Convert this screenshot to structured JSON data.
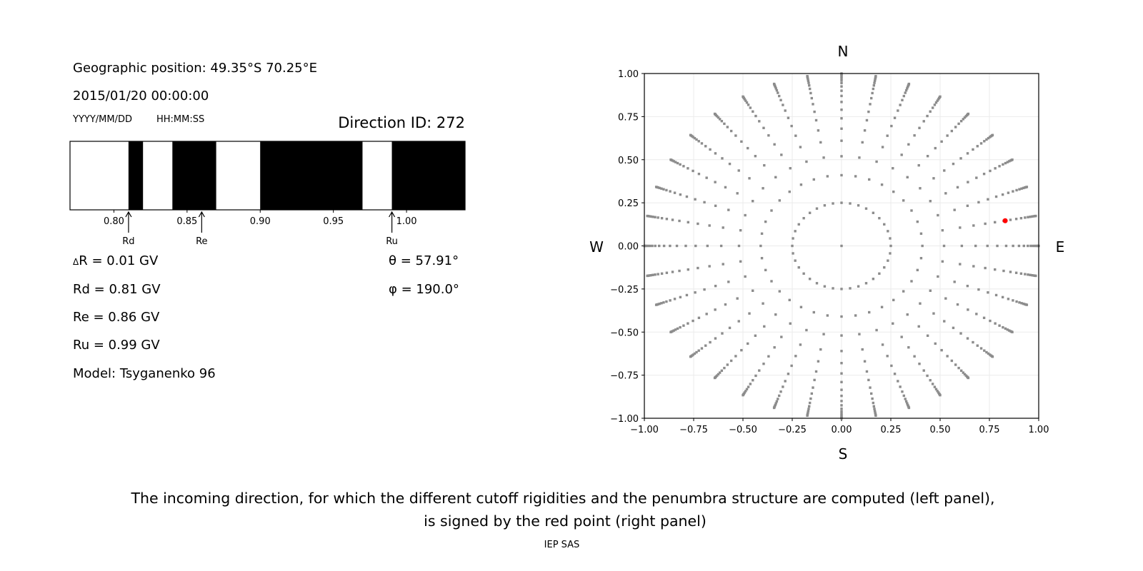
{
  "left_panel": {
    "geo_position": "Geographic position: 49.35°S 70.25°E",
    "datetime": "2015/01/20 00:00:00",
    "date_format": "YYYY/MM/DD",
    "time_format": "HH:MM:SS",
    "direction_id": "Direction ID: 272",
    "delta_r": "R = 0.01 GV",
    "delta_symbol": "Δ",
    "rd": "Rd = 0.81 GV",
    "re": "Re = 0.86 GV",
    "ru": "Ru = 0.99 GV",
    "model": "Model: Tsyganenko 96",
    "theta": "θ = 57.91°",
    "phi": "φ = 190.0°"
  },
  "chart_data": [
    {
      "type": "bar",
      "description_role": "penumbra",
      "xlim": [
        0.77,
        1.04
      ],
      "xticks": [
        "0.80",
        "0.85",
        "0.90",
        "0.95",
        "1.00"
      ],
      "segments": [
        {
          "from": 0.77,
          "to": 0.81,
          "allowed": true
        },
        {
          "from": 0.81,
          "to": 0.82,
          "allowed": false
        },
        {
          "from": 0.82,
          "to": 0.84,
          "allowed": true
        },
        {
          "from": 0.84,
          "to": 0.87,
          "allowed": false
        },
        {
          "from": 0.87,
          "to": 0.9,
          "allowed": true
        },
        {
          "from": 0.9,
          "to": 0.97,
          "allowed": false
        },
        {
          "from": 0.97,
          "to": 0.99,
          "allowed": true
        },
        {
          "from": 0.99,
          "to": 1.04,
          "allowed": false
        }
      ],
      "markers": [
        {
          "label": "Rd",
          "value": 0.81
        },
        {
          "label": "Re",
          "value": 0.86
        },
        {
          "label": "Ru",
          "value": 0.99
        }
      ]
    },
    {
      "type": "scatter",
      "xlim": [
        -1,
        1
      ],
      "ylim": [
        -1,
        1
      ],
      "grid": true,
      "ticks": [
        "−1.00",
        "−0.75",
        "−0.50",
        "−0.25",
        "0.00",
        "0.25",
        "0.50",
        "0.75",
        "1.00"
      ],
      "tick_values": [
        -1,
        -0.75,
        -0.5,
        -0.25,
        0,
        0.25,
        0.5,
        0.75,
        1
      ],
      "compass": {
        "north": "N",
        "south": "S",
        "west": "W",
        "east": "E"
      },
      "inner_ring_radius": 0.25,
      "spoke_azimuth_step_deg": 10,
      "spoke_radii": [
        0.41,
        0.52,
        0.61,
        0.68,
        0.74,
        0.79,
        0.835,
        0.87,
        0.9,
        0.925,
        0.945,
        0.96,
        0.972,
        0.982,
        0.99,
        0.996,
        1.0
      ],
      "point_color": "#8c8c8c",
      "selected": {
        "x": 0.83,
        "y": 0.146,
        "color": "#ff0000"
      }
    }
  ],
  "caption_line1": "The incoming direction, for which the different cutoff rigidities and the penumbra structure are computed (left panel),",
  "caption_line2": "is signed by the red point (right panel)",
  "credit": "IEP SAS"
}
